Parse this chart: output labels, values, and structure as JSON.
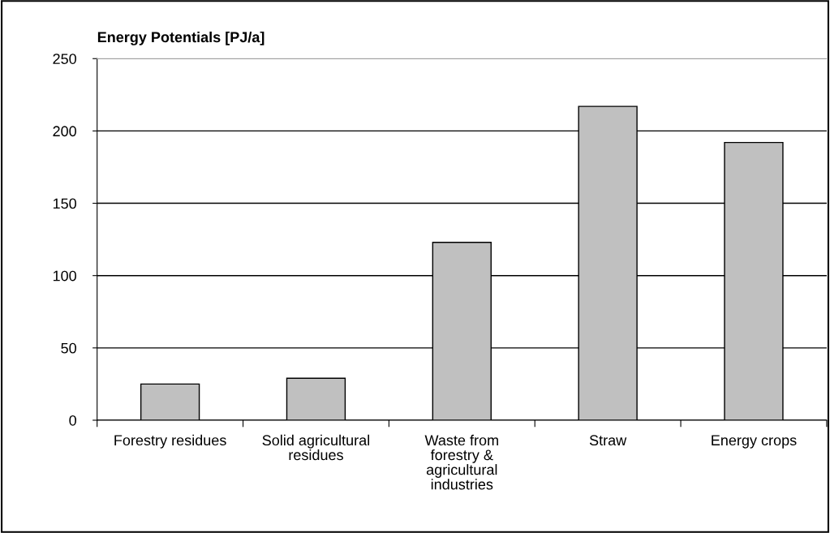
{
  "chart_data": {
    "type": "bar",
    "title": "Energy Potentials [PJ/a]",
    "categories": [
      "Forestry residues",
      "Solid agricultural\nresidues",
      "Waste from\nforestry &\nagricultural\nindustries",
      "Straw",
      "Energy crops"
    ],
    "values": [
      25,
      29,
      123,
      217,
      192
    ],
    "color": "#c0c0c0",
    "ylim": [
      0,
      250
    ],
    "yticks": [
      0,
      50,
      100,
      150,
      200,
      250
    ],
    "grid": "y"
  }
}
